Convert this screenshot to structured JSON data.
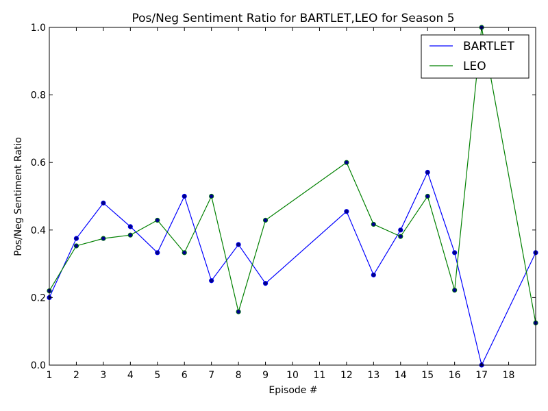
{
  "chart_data": {
    "type": "line",
    "title": "Pos/Neg Sentiment Ratio for BARTLET,LEO for Season 5",
    "xlabel": "Episode #",
    "ylabel": "Pos/Neg Sentiment Ratio",
    "xlim": [
      1,
      19
    ],
    "ylim": [
      0.0,
      1.0
    ],
    "xticks": [
      1,
      2,
      3,
      4,
      5,
      6,
      7,
      8,
      9,
      10,
      11,
      12,
      13,
      14,
      15,
      16,
      17,
      18
    ],
    "yticks": [
      0.0,
      0.2,
      0.4,
      0.6,
      0.8,
      1.0
    ],
    "ytick_labels": [
      "0.0",
      "0.2",
      "0.4",
      "0.6",
      "0.8",
      "1.0"
    ],
    "grid": false,
    "legend_position": "top-right",
    "series": [
      {
        "name": "BARTLET",
        "color": "#0000ff",
        "x": [
          1,
          2,
          3,
          4,
          5,
          6,
          7,
          8,
          9,
          12,
          13,
          14,
          15,
          16,
          17,
          19
        ],
        "y": [
          0.2,
          0.375,
          0.48,
          0.41,
          0.333,
          0.5,
          0.25,
          0.357,
          0.242,
          0.455,
          0.267,
          0.4,
          0.571,
          0.333,
          0.0,
          0.333
        ]
      },
      {
        "name": "LEO",
        "color": "#008000",
        "x": [
          1,
          2,
          3,
          4,
          5,
          6,
          7,
          8,
          9,
          12,
          13,
          14,
          15,
          16,
          17,
          19
        ],
        "y": [
          0.22,
          0.353,
          0.375,
          0.385,
          0.429,
          0.333,
          0.5,
          0.158,
          0.429,
          0.6,
          0.417,
          0.381,
          0.5,
          0.222,
          1.0,
          0.125
        ]
      }
    ],
    "marker_color": "#00008b"
  }
}
